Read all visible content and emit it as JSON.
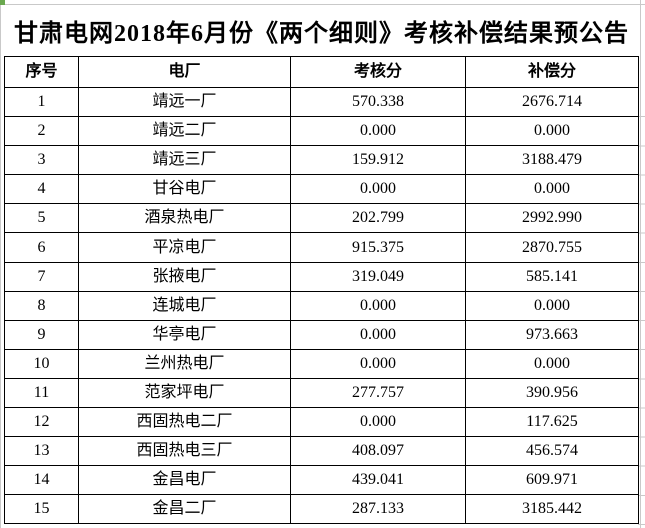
{
  "title": "甘肃电网2018年6月份《两个细则》考核补偿结果预公告",
  "table": {
    "headers": [
      "序号",
      "电厂",
      "考核分",
      "补偿分"
    ],
    "rows": [
      [
        "1",
        "靖远一厂",
        "570.338",
        "2676.714"
      ],
      [
        "2",
        "靖远二厂",
        "0.000",
        "0.000"
      ],
      [
        "3",
        "靖远三厂",
        "159.912",
        "3188.479"
      ],
      [
        "4",
        "甘谷电厂",
        "0.000",
        "0.000"
      ],
      [
        "5",
        "酒泉热电厂",
        "202.799",
        "2992.990"
      ],
      [
        "6",
        "平凉电厂",
        "915.375",
        "2870.755"
      ],
      [
        "7",
        "张掖电厂",
        "319.049",
        "585.141"
      ],
      [
        "8",
        "连城电厂",
        "0.000",
        "0.000"
      ],
      [
        "9",
        "华亭电厂",
        "0.000",
        "973.663"
      ],
      [
        "10",
        "兰州热电厂",
        "0.000",
        "0.000"
      ],
      [
        "11",
        "范家坪电厂",
        "277.757",
        "390.956"
      ],
      [
        "12",
        "西固热电二厂",
        "0.000",
        "117.625"
      ],
      [
        "13",
        "西固热电三厂",
        "408.097",
        "456.574"
      ],
      [
        "14",
        "金昌电厂",
        "439.041",
        "609.971"
      ],
      [
        "15",
        "金昌二厂",
        "287.133",
        "3185.442"
      ]
    ]
  },
  "colors": {
    "text": "#000000",
    "table_border": "#000000",
    "gridline": "#c9c9c9",
    "corner_accent": "#6aa84f",
    "background": "#ffffff"
  }
}
